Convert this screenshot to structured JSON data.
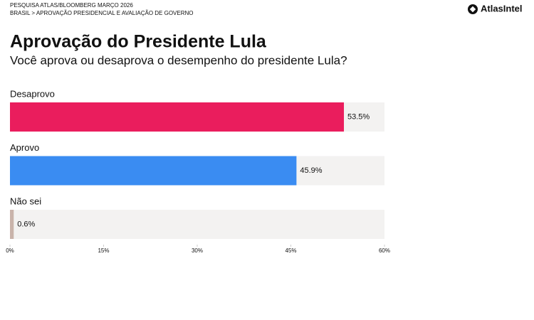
{
  "chart_data": {
    "type": "bar",
    "orientation": "horizontal",
    "kicker": "PESQUISA ATLAS/BLOOMBERG MARÇO 2026",
    "breadcrumb": "BRASIL > APROVAÇÃO PRESIDENCIAL E AVALIAÇÃO DE GOVERNO",
    "brand": "AtlasIntel",
    "title": "Aprovação do Presidente Lula",
    "subtitle": "Você aprova ou desaprova o desempenho do presidente Lula?",
    "categories": [
      "Desaprovo",
      "Aprovo",
      "Não sei"
    ],
    "values": [
      53.5,
      45.9,
      0.6
    ],
    "value_labels": [
      "53.5%",
      "45.9%",
      "0.6%"
    ],
    "colors": [
      "#ea1d5d",
      "#3a8cf2",
      "#c9b3aa"
    ],
    "xlim": [
      0,
      60
    ],
    "xticks": [
      {
        "value": 0,
        "label": "0%"
      },
      {
        "value": 15,
        "label": "15%"
      },
      {
        "value": 30,
        "label": "30%"
      },
      {
        "value": 45,
        "label": "45%"
      },
      {
        "value": 60,
        "label": "60%"
      }
    ]
  }
}
